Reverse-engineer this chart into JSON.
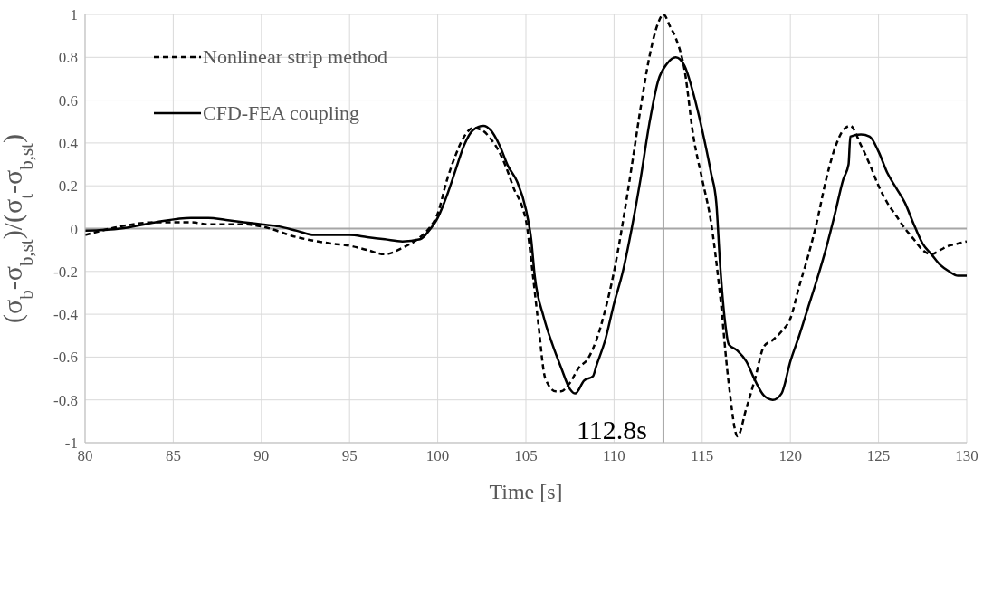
{
  "chart_data": {
    "type": "line",
    "xlabel": "Time [s]",
    "ylabel": "(σ$_{b}$-σ$_{b,st}$)/(σ$_{t}$-σ$_{b,st}$)",
    "xlim": [
      80,
      130
    ],
    "xticks": [
      80,
      85,
      90,
      95,
      100,
      105,
      110,
      115,
      120,
      125,
      130
    ],
    "ylim": [
      -1,
      1
    ],
    "yticks": [
      -1,
      -0.8,
      -0.6,
      -0.4,
      -0.2,
      0,
      0.2,
      0.4,
      0.6,
      0.8,
      1
    ],
    "grid": true,
    "legend": "top left",
    "marker": "none",
    "ref_lines": [
      {
        "axis": "y",
        "value": 0,
        "color": "#a6a6a6"
      },
      {
        "axis": "x",
        "value": 112.8,
        "label": "112.8s",
        "color": "#a6a6a6"
      }
    ],
    "series": [
      {
        "name": "Nonlinear strip method",
        "color": "#000000",
        "line_style": "dashed",
        "x": [
          80,
          82,
          84,
          86,
          87,
          89,
          90,
          92,
          94,
          95,
          96,
          97,
          98,
          99,
          99.5,
          100,
          100.5,
          101,
          101.5,
          102,
          102.5,
          103,
          103.6,
          104,
          104.3,
          104.8,
          105,
          105.4,
          105.7,
          106.1,
          106.7,
          107,
          107.5,
          108,
          108.5,
          109,
          109.5,
          110,
          110.5,
          111,
          111.5,
          112,
          112.5,
          112.8,
          113.2,
          113.5,
          114,
          114.5,
          115,
          115.5,
          116,
          116.5,
          117,
          117.5,
          118,
          118.5,
          119,
          119.5,
          120,
          120.5,
          121,
          121.5,
          122,
          122.5,
          123,
          123.4,
          124,
          124.5,
          125,
          125.5,
          126,
          126.5,
          127,
          127.5,
          128,
          128.5,
          129,
          129.5,
          130
        ],
        "values": [
          -0.03,
          0.01,
          0.03,
          0.03,
          0.02,
          0.02,
          0.01,
          -0.04,
          -0.07,
          -0.08,
          -0.1,
          -0.12,
          -0.09,
          -0.04,
          0,
          0.07,
          0.22,
          0.34,
          0.43,
          0.47,
          0.46,
          0.42,
          0.34,
          0.26,
          0.19,
          0.1,
          0.04,
          -0.22,
          -0.44,
          -0.7,
          -0.76,
          -0.76,
          -0.72,
          -0.65,
          -0.61,
          -0.52,
          -0.38,
          -0.2,
          0.03,
          0.29,
          0.56,
          0.8,
          0.96,
          1,
          0.94,
          0.89,
          0.74,
          0.43,
          0.23,
          0.03,
          -0.3,
          -0.72,
          -0.97,
          -0.84,
          -0.7,
          -0.55,
          -0.52,
          -0.48,
          -0.42,
          -0.27,
          -0.13,
          0.03,
          0.22,
          0.37,
          0.46,
          0.48,
          0.39,
          0.3,
          0.2,
          0.12,
          0.06,
          0,
          -0.05,
          -0.1,
          -0.12,
          -0.1,
          -0.08,
          -0.07,
          -0.06
        ]
      },
      {
        "name": "CFD-FEA coupling",
        "color": "#000000",
        "line_style": "solid",
        "x": [
          80,
          82,
          84,
          86,
          87,
          88,
          89,
          90,
          91,
          92,
          93,
          94,
          95,
          96,
          97,
          98,
          99,
          99.5,
          100,
          100.5,
          101,
          101.5,
          102,
          102.6,
          103,
          103.5,
          104,
          104.5,
          105,
          105.3,
          105.5,
          106,
          106.5,
          107,
          107.5,
          107.8,
          108.3,
          108.8,
          109,
          109.5,
          110,
          110.5,
          111,
          111.5,
          112,
          112.5,
          113,
          113.5,
          114,
          114.5,
          115,
          115.5,
          115.8,
          116,
          116.3,
          116.5,
          117,
          117.5,
          118,
          118.5,
          119,
          119.5,
          120,
          120.5,
          121,
          121.5,
          122,
          122.5,
          123,
          123.3,
          123.4,
          124,
          124.5,
          125,
          125.5,
          126,
          126.5,
          127,
          127.5,
          128,
          128.5,
          129,
          129.5,
          130
        ],
        "values": [
          -0.01,
          0,
          0.03,
          0.05,
          0.05,
          0.04,
          0.03,
          0.02,
          0.01,
          -0.01,
          -0.03,
          -0.03,
          -0.03,
          -0.04,
          -0.05,
          -0.06,
          -0.05,
          -0.01,
          0.05,
          0.15,
          0.27,
          0.39,
          0.46,
          0.48,
          0.46,
          0.39,
          0.29,
          0.22,
          0.09,
          -0.05,
          -0.22,
          -0.41,
          -0.54,
          -0.65,
          -0.75,
          -0.77,
          -0.71,
          -0.69,
          -0.64,
          -0.52,
          -0.35,
          -0.2,
          0,
          0.23,
          0.49,
          0.69,
          0.77,
          0.8,
          0.76,
          0.63,
          0.46,
          0.26,
          0.12,
          -0.15,
          -0.44,
          -0.54,
          -0.57,
          -0.62,
          -0.71,
          -0.78,
          -0.8,
          -0.77,
          -0.62,
          -0.5,
          -0.37,
          -0.24,
          -0.1,
          0.06,
          0.23,
          0.3,
          0.43,
          0.44,
          0.43,
          0.36,
          0.26,
          0.19,
          0.12,
          0.02,
          -0.07,
          -0.12,
          -0.17,
          -0.2,
          -0.22,
          -0.22
        ]
      }
    ]
  }
}
